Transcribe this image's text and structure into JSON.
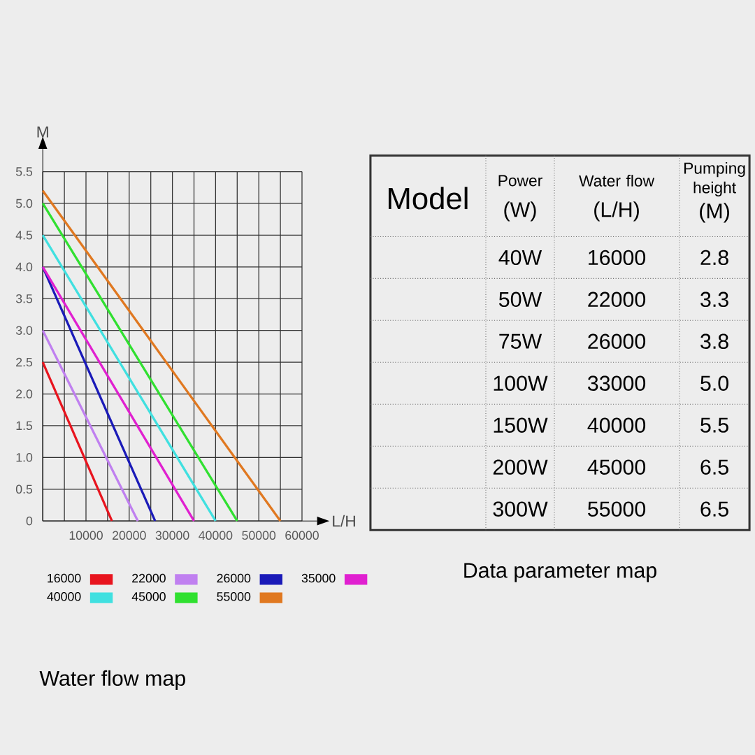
{
  "chart_data": [
    {
      "type": "line",
      "title": "Water flow map",
      "xlabel": "L/H",
      "ylabel": "M",
      "xlim": [
        0,
        60000
      ],
      "ylim": [
        0,
        5.5
      ],
      "xticks": [
        {
          "value": 0,
          "label": null
        },
        {
          "value": 5000,
          "label": null
        },
        10000,
        {
          "value": 15000,
          "label": null
        },
        20000,
        {
          "value": 25000,
          "label": null
        },
        30000,
        {
          "value": 35000,
          "label": null
        },
        40000,
        {
          "value": 45000,
          "label": null
        },
        50000,
        {
          "value": 55000,
          "label": null
        },
        60000
      ],
      "yticks": [
        0,
        0.5,
        {
          "value": 1,
          "label": "1.0"
        },
        1.5,
        {
          "value": 2,
          "label": "2.0"
        },
        2.5,
        {
          "value": 3,
          "label": "3.0"
        },
        3.5,
        {
          "value": 4,
          "label": "4.0"
        },
        4.5,
        {
          "value": 5,
          "label": "5.0"
        },
        5.5
      ],
      "grid": true,
      "legend": "bottom",
      "marker": "none",
      "line_style": "solid",
      "series": [
        {
          "name": "16000",
          "color": "#e8141e",
          "x": [
            0,
            16000
          ],
          "values": [
            2.5,
            0
          ]
        },
        {
          "name": "22000",
          "color": "#c080f0",
          "x": [
            0,
            22000
          ],
          "values": [
            3.0,
            0
          ]
        },
        {
          "name": "26000",
          "color": "#1a1ab8",
          "x": [
            0,
            26000
          ],
          "values": [
            4.0,
            0
          ]
        },
        {
          "name": "35000",
          "color": "#e020d0",
          "x": [
            0,
            35000
          ],
          "values": [
            4.0,
            0
          ]
        },
        {
          "name": "40000",
          "color": "#40e0e0",
          "x": [
            0,
            40000
          ],
          "values": [
            4.5,
            0
          ]
        },
        {
          "name": "45000",
          "color": "#30e030",
          "x": [
            0,
            45000
          ],
          "values": [
            5.0,
            0
          ]
        },
        {
          "name": "55000",
          "color": "#e07820",
          "x": [
            0,
            55000
          ],
          "values": [
            5.2,
            0
          ]
        }
      ]
    },
    {
      "type": "other",
      "title": "Data parameter map",
      "annotations": [
        "Model",
        "Power",
        "(W)",
        "Water flow",
        "(L/H)",
        "Pumping height",
        "(M)",
        "40W",
        "16000",
        "2.8",
        "50W",
        "22000",
        "3.3",
        "75W",
        "26000",
        "3.8",
        "100W",
        "33000",
        "5.0",
        "150W",
        "40000",
        "5.5",
        "200W",
        "45000",
        "6.5",
        "300W",
        "55000",
        "6.5"
      ]
    }
  ]
}
